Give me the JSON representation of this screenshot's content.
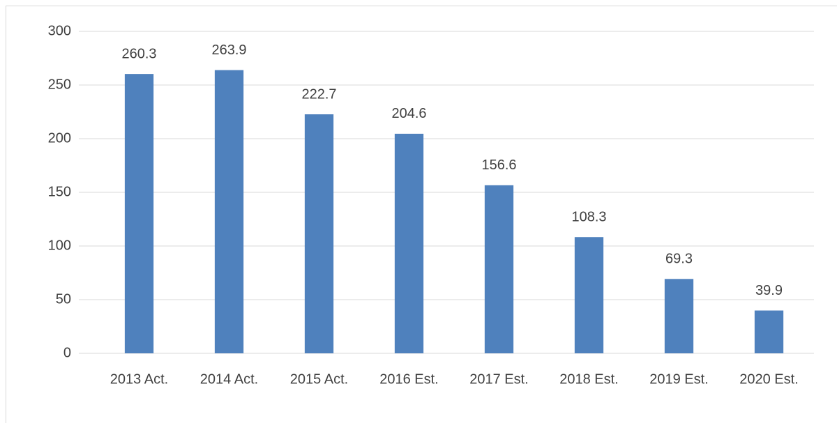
{
  "chart_data": {
    "type": "bar",
    "categories": [
      "2013 Act.",
      "2014 Act.",
      "2015 Act.",
      "2016 Est.",
      "2017 Est.",
      "2018 Est.",
      "2019 Est.",
      "2020 Est."
    ],
    "values": [
      260.3,
      263.9,
      222.7,
      204.6,
      156.6,
      108.3,
      69.3,
      39.9
    ],
    "color": "#4f81bd",
    "ylim": [
      0,
      300
    ],
    "yticks": [
      0,
      50,
      100,
      150,
      200,
      250,
      300
    ],
    "grid": true
  }
}
